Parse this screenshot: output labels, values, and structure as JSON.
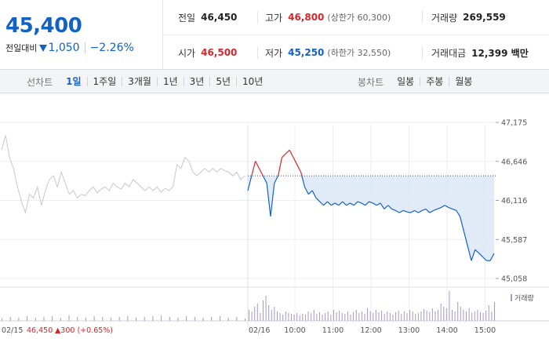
{
  "quote": {
    "price": "45,400",
    "change_label": "전일대비",
    "change_value": "1,050",
    "change_rate": "−2.26%",
    "prev_close_label": "전일",
    "prev_close": "46,450",
    "high_label": "고가",
    "high": "46,800",
    "upper_limit": "(상한가 60,300)",
    "volume_label": "거래량",
    "volume": "269,559",
    "open_label": "시가",
    "open": "46,500",
    "low_label": "저가",
    "low": "45,250",
    "lower_limit": "(하한가 32,550)",
    "amount_label": "거래대금",
    "amount": "12,399 백만"
  },
  "toolbar": {
    "line_title": "선차트",
    "line_items": [
      "1일",
      "1주일",
      "3개월",
      "1년",
      "3년",
      "5년",
      "10년"
    ],
    "line_active": 0,
    "candle_title": "봉차트",
    "candle_items": [
      "일봉",
      "주봉",
      "월봉"
    ]
  },
  "colors": {
    "up": "#d8252b",
    "down": "#1261c4",
    "prev_day": "#c8c8c8",
    "volume": "#a597c4"
  },
  "chart_data": {
    "type": "line",
    "y_ticks": [
      "47,175",
      "46,646",
      "46,116",
      "45,587",
      "45,058"
    ],
    "ylim": [
      45058,
      47175
    ],
    "x_ticks": [
      "10:00",
      "11:00",
      "12:00",
      "13:00",
      "14:00",
      "15:00"
    ],
    "prev_day_date": "02/15",
    "prev_day_close": "46,450",
    "prev_day_change": "▲300 (+0.65%)",
    "today_date": "02/16",
    "baseline": 46450,
    "volume_legend": "거래량",
    "prev_day_series": {
      "name": "02/15",
      "values": [
        46800,
        47000,
        46700,
        46550,
        46300,
        46100,
        45950,
        46200,
        46150,
        46300,
        46050,
        46250,
        46400,
        46450,
        46300,
        46500,
        46350,
        46200,
        46250,
        46150,
        46200,
        46180,
        46250,
        46300,
        46220,
        46270,
        46300,
        46250,
        46350,
        46300,
        46270,
        46350,
        46300,
        46400,
        46350,
        46300,
        46250,
        46300,
        46250,
        46300,
        46230,
        46280,
        46250,
        46300,
        46600,
        46550,
        46700,
        46650,
        46500,
        46450,
        46500,
        46550,
        46500,
        46550,
        46500,
        46550,
        46520,
        46500,
        46450,
        46500,
        46400,
        46450
      ]
    },
    "today_series": {
      "name": "02/16",
      "values": [
        46250,
        46450,
        46650,
        46550,
        46450,
        46350,
        45900,
        46350,
        46450,
        46700,
        46750,
        46800,
        46700,
        46600,
        46500,
        46300,
        46200,
        46250,
        46150,
        46100,
        46050,
        46100,
        46050,
        46080,
        46050,
        46100,
        46050,
        46080,
        46050,
        46100,
        46080,
        46050,
        46100,
        46080,
        46050,
        46080,
        46000,
        46050,
        46000,
        45980,
        45950,
        45980,
        45960,
        45950,
        45980,
        45950,
        45980,
        46000,
        45950,
        45980,
        46000,
        46020,
        46050,
        46020,
        46000,
        45980,
        45900,
        45700,
        45500,
        45300,
        45450,
        45400,
        45350,
        45300,
        45300,
        45400
      ]
    },
    "volume_values": [
      3,
      5,
      4,
      6,
      4,
      5,
      6,
      4,
      7,
      5,
      4,
      6,
      5,
      4,
      5,
      6,
      4,
      5,
      6,
      7,
      5,
      4,
      6,
      5,
      4,
      5,
      6,
      4,
      5,
      3,
      14,
      12,
      18,
      22,
      10,
      26,
      32,
      20,
      14,
      18,
      12,
      10,
      8,
      12,
      10,
      9,
      8,
      10,
      7,
      9,
      8,
      12,
      10,
      14,
      9,
      11,
      8,
      10,
      12,
      8,
      14,
      11,
      13,
      10,
      9,
      12,
      8,
      11,
      14,
      10,
      12,
      9,
      16,
      12,
      10,
      14,
      11,
      13,
      9,
      12,
      10,
      8,
      11,
      13,
      9,
      12,
      10,
      14,
      12,
      9,
      10,
      12,
      15,
      13,
      11,
      16,
      12,
      14,
      22,
      18,
      16,
      38,
      14,
      12,
      24,
      18,
      14,
      12,
      16,
      10,
      12,
      14,
      11,
      10,
      13,
      20,
      12,
      24
    ]
  }
}
